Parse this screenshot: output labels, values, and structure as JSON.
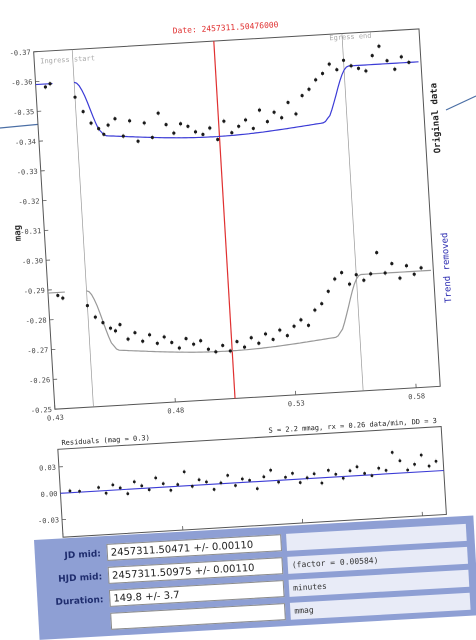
{
  "chart_data": [
    {
      "type": "scatter",
      "title": "Date: 2457311.50476000",
      "ylabel": "mag",
      "xlim": [
        0.43,
        0.59
      ],
      "x_ticks": [
        "0.43",
        "0.48",
        "0.53",
        "0.58"
      ],
      "y_ticks": [
        "-0.37",
        "-0.36",
        "-0.35",
        "-0.34",
        "-0.33",
        "-0.32",
        "-0.31",
        "-0.30",
        "-0.29",
        "-0.28",
        "-0.27",
        "-0.26",
        "-0.25"
      ],
      "ylim": [
        -0.37,
        -0.25
      ],
      "labels": {
        "left_boundary": "Ingress start",
        "right_boundary": "Egress end",
        "top_series": "Original data",
        "bottom_series": "Trend removed"
      },
      "vlines": [
        0.446,
        0.5048,
        0.558
      ],
      "series": [
        {
          "name": "Original data",
          "x": [
            0.434,
            0.436,
            0.446,
            0.449,
            0.452,
            0.455,
            0.457,
            0.459,
            0.462,
            0.465,
            0.468,
            0.471,
            0.474,
            0.477,
            0.48,
            0.483,
            0.486,
            0.489,
            0.492,
            0.495,
            0.498,
            0.501,
            0.504,
            0.507,
            0.51,
            0.513,
            0.516,
            0.519,
            0.522,
            0.525,
            0.528,
            0.531,
            0.534,
            0.537,
            0.54,
            0.543,
            0.546,
            0.549,
            0.552,
            0.555,
            0.558,
            0.561,
            0.564,
            0.567,
            0.57,
            0.573,
            0.576,
            0.579,
            0.582,
            0.585
          ],
          "y": [
            -0.358,
            -0.359,
            -0.354,
            -0.349,
            -0.345,
            -0.343,
            -0.341,
            -0.344,
            -0.346,
            -0.34,
            -0.345,
            -0.338,
            -0.344,
            -0.339,
            -0.347,
            -0.343,
            -0.34,
            -0.343,
            -0.342,
            -0.34,
            -0.339,
            -0.341,
            -0.337,
            -0.343,
            -0.339,
            -0.341,
            -0.343,
            -0.34,
            -0.346,
            -0.342,
            -0.345,
            -0.343,
            -0.348,
            -0.344,
            -0.35,
            -0.352,
            -0.355,
            -0.357,
            -0.36,
            -0.358,
            -0.361,
            -0.359,
            -0.358,
            -0.357,
            -0.362,
            -0.365,
            -0.36,
            -0.357,
            -0.361,
            -0.359
          ]
        },
        {
          "name": "Trend removed",
          "x": [
            0.434,
            0.436,
            0.446,
            0.449,
            0.452,
            0.455,
            0.457,
            0.459,
            0.462,
            0.465,
            0.468,
            0.471,
            0.474,
            0.477,
            0.48,
            0.483,
            0.486,
            0.489,
            0.492,
            0.495,
            0.498,
            0.501,
            0.504,
            0.507,
            0.51,
            0.513,
            0.516,
            0.519,
            0.522,
            0.525,
            0.528,
            0.531,
            0.534,
            0.537,
            0.54,
            0.543,
            0.546,
            0.549,
            0.552,
            0.555,
            0.558,
            0.561,
            0.564,
            0.567,
            0.57,
            0.573,
            0.576,
            0.579,
            0.582,
            0.585
          ],
          "y": [
            -0.288,
            -0.287,
            -0.284,
            -0.28,
            -0.278,
            -0.276,
            -0.275,
            -0.277,
            -0.272,
            -0.274,
            -0.271,
            -0.273,
            -0.27,
            -0.272,
            -0.27,
            -0.268,
            -0.271,
            -0.269,
            -0.27,
            -0.267,
            -0.266,
            -0.268,
            -0.266,
            -0.269,
            -0.267,
            -0.27,
            -0.268,
            -0.271,
            -0.269,
            -0.272,
            -0.27,
            -0.273,
            -0.275,
            -0.273,
            -0.278,
            -0.28,
            -0.284,
            -0.288,
            -0.29,
            -0.286,
            -0.289,
            -0.287,
            -0.289,
            -0.296,
            -0.289,
            -0.292,
            -0.287,
            -0.291,
            -0.288,
            -0.29
          ]
        }
      ]
    },
    {
      "type": "scatter",
      "title": "Residuals (mag = 0.3)",
      "annotation": "S = 2.2 mmag, rx = 0.26 data/min, DD = 3",
      "xlim": [
        0.43,
        0.59
      ],
      "ylim": [
        -0.05,
        0.05
      ],
      "x_ticks": [
        "0.43",
        "0.48",
        "0.53",
        "0.58"
      ],
      "y_ticks": [
        "-0.03",
        "0.00",
        "0.03"
      ],
      "series": [
        {
          "name": "Residuals",
          "x": [
            0.434,
            0.438,
            0.446,
            0.449,
            0.452,
            0.455,
            0.458,
            0.461,
            0.464,
            0.467,
            0.47,
            0.473,
            0.476,
            0.479,
            0.482,
            0.485,
            0.488,
            0.491,
            0.494,
            0.497,
            0.5,
            0.503,
            0.506,
            0.509,
            0.512,
            0.515,
            0.518,
            0.521,
            0.524,
            0.527,
            0.53,
            0.533,
            0.536,
            0.539,
            0.542,
            0.545,
            0.548,
            0.551,
            0.554,
            0.557,
            0.56,
            0.563,
            0.566,
            0.569,
            0.572,
            0.575,
            0.578,
            0.581,
            0.584,
            0.587
          ],
          "y": [
            0.002,
            0.001,
            0.004,
            -0.003,
            0.006,
            0.002,
            -0.005,
            0.008,
            0.003,
            -0.002,
            0.011,
            0.004,
            -0.004,
            0.002,
            0.016,
            -0.001,
            0.006,
            0.003,
            -0.006,
            0.001,
            0.009,
            -0.003,
            0.004,
            0.002,
            -0.008,
            0.005,
            0.012,
            -0.002,
            0.003,
            0.007,
            -0.004,
            0.001,
            0.005,
            -0.006,
            0.008,
            0.003,
            -0.002,
            0.006,
            0.01,
            0.002,
            -0.001,
            0.007,
            0.004,
            0.024,
            0.014,
            0.003,
            0.009,
            0.019,
            0.006,
            0.011
          ]
        }
      ]
    }
  ],
  "results": [
    {
      "label": "JD mid:",
      "value": "2457311.50471 +/- 0.00110",
      "note": ""
    },
    {
      "label": "HJD mid:",
      "value": "2457311.50975 +/- 0.00110",
      "note": "(factor = 0.00584)"
    },
    {
      "label": "Duration:",
      "value": "149.8 +/- 3.7",
      "note": "minutes"
    },
    {
      "label": "",
      "value": "",
      "note": "mmag"
    }
  ],
  "colors": {
    "model": "#3b3bd6",
    "midline": "#e03030",
    "points": "#1a1a1a",
    "panel": "#8e9fd4",
    "vertical_label": "#2a2ab0"
  }
}
